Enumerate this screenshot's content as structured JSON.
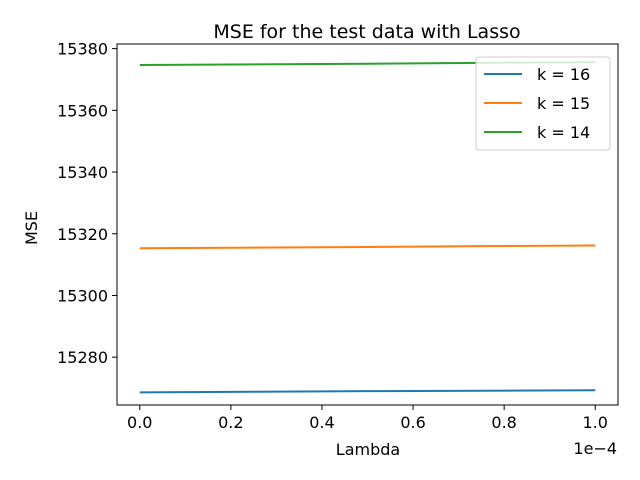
{
  "chart_data": {
    "type": "line",
    "title": "MSE for the test data with Lasso",
    "xlabel": "Lambda",
    "ylabel": "MSE",
    "x_offset_text": "1e−4",
    "x": [
      0.0,
      0.25,
      0.5,
      0.75,
      1.0
    ],
    "x_ticks": [
      0.0,
      0.2,
      0.4,
      0.6,
      0.8,
      1.0
    ],
    "x_tick_labels": [
      "0.0",
      "0.2",
      "0.4",
      "0.6",
      "0.8",
      "1.0"
    ],
    "y_ticks": [
      15280,
      15300,
      15320,
      15340,
      15360,
      15380
    ],
    "y_tick_labels": [
      "15280",
      "15300",
      "15320",
      "15340",
      "15360",
      "15380"
    ],
    "xlim": [
      -0.05,
      1.05
    ],
    "ylim": [
      15264.5,
      15381.5
    ],
    "legend_position": "top-right",
    "grid": false,
    "series": [
      {
        "name": "k = 16",
        "color": "#1f77b4",
        "values": [
          15268.6,
          15268.8,
          15269.0,
          15269.1,
          15269.3
        ]
      },
      {
        "name": "k = 15",
        "color": "#ff7f0e",
        "values": [
          15315.3,
          15315.5,
          15315.7,
          15316.0,
          15316.2
        ]
      },
      {
        "name": "k = 14",
        "color": "#2ca02c",
        "values": [
          15374.7,
          15374.9,
          15375.1,
          15375.4,
          15375.6
        ]
      }
    ]
  }
}
